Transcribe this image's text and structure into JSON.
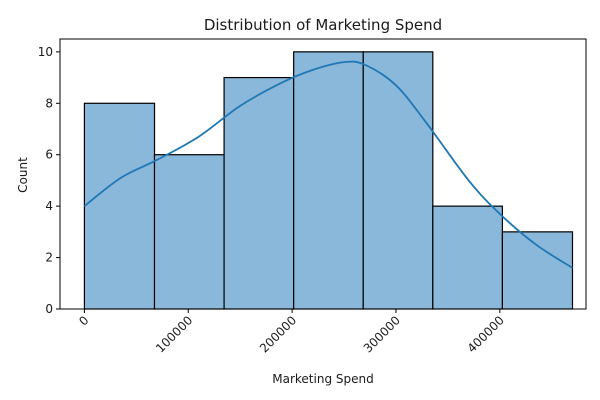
{
  "chart_data": {
    "type": "histogram",
    "title": "Distribution of Marketing Spend",
    "xlabel": "Marketing Spend",
    "ylabel": "Count",
    "xlim": [
      -23500,
      483000
    ],
    "ylim": [
      0,
      10.5
    ],
    "bins": [
      {
        "start": 0,
        "end": 67500,
        "count": 8
      },
      {
        "start": 67500,
        "end": 134500,
        "count": 6
      },
      {
        "start": 134500,
        "end": 201500,
        "count": 9
      },
      {
        "start": 201500,
        "end": 268500,
        "count": 10
      },
      {
        "start": 268500,
        "end": 335500,
        "count": 10
      },
      {
        "start": 335500,
        "end": 402500,
        "count": 4
      },
      {
        "start": 402500,
        "end": 470000,
        "count": 3
      }
    ],
    "kde": {
      "x": [
        0,
        35000,
        70000,
        110000,
        150000,
        190000,
        220000,
        250000,
        270000,
        300000,
        330000,
        370000,
        400000,
        435000,
        470000
      ],
      "y": [
        4.0,
        5.1,
        5.8,
        6.7,
        7.9,
        8.8,
        9.3,
        9.6,
        9.5,
        8.7,
        7.2,
        5.0,
        3.7,
        2.5,
        1.6
      ]
    },
    "xticks": [
      0,
      100000,
      200000,
      300000,
      400000
    ],
    "xtick_labels": [
      "0",
      "100000",
      "200000",
      "300000",
      "400000"
    ],
    "yticks": [
      0,
      2,
      4,
      6,
      8,
      10
    ],
    "ytick_labels": [
      "0",
      "2",
      "4",
      "6",
      "8",
      "10"
    ],
    "grid": false,
    "legend": "none",
    "colors": {
      "bar_fill": "#8ab8db",
      "bar_edge": "#000000",
      "kde_line": "#1f77b4"
    }
  }
}
